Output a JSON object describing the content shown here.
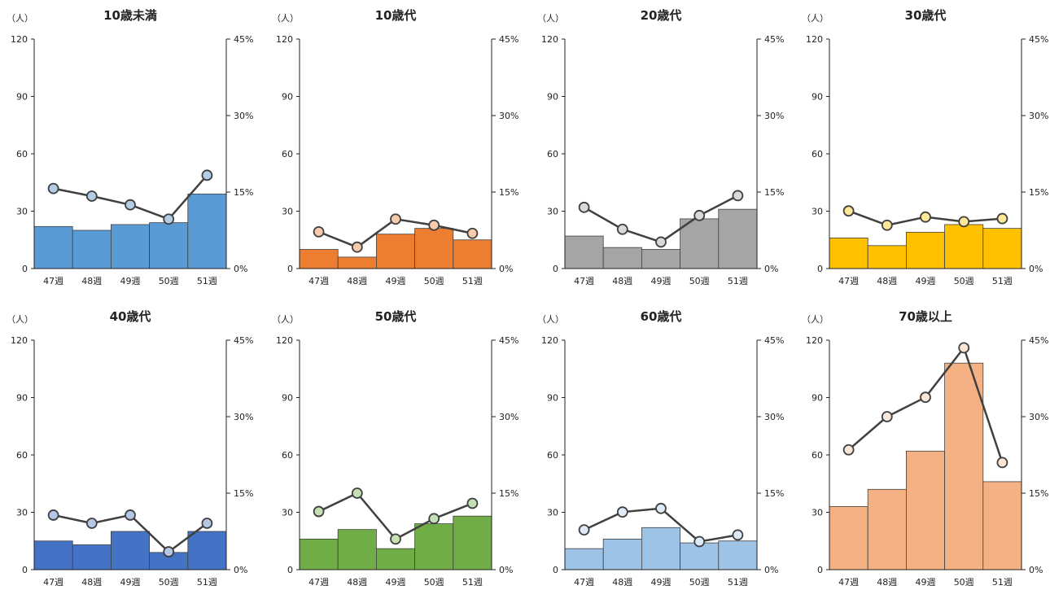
{
  "chart_data": [
    {
      "type": "bar+line",
      "title": "10歳未満",
      "categories": [
        "47週",
        "48週",
        "49週",
        "50週",
        "51週"
      ],
      "ylim": [
        0,
        120
      ],
      "yticks": [
        0,
        30,
        60,
        90,
        120
      ],
      "y2lim": [
        0,
        0.45
      ],
      "y2ticks": [
        "0%",
        "15%",
        "30%",
        "45%"
      ],
      "yunit": "（人）",
      "series": [
        {
          "type": "bar",
          "values": [
            22,
            20,
            23,
            24,
            39
          ]
        },
        {
          "type": "line",
          "values": [
            0.157,
            0.142,
            0.125,
            0.097,
            0.183
          ]
        }
      ],
      "bar_color": "#5b9bd5",
      "marker_color": "#b4cde6"
    },
    {
      "type": "bar+line",
      "title": "10歳代",
      "categories": [
        "47週",
        "48週",
        "49週",
        "50週",
        "51週"
      ],
      "ylim": [
        0,
        120
      ],
      "yticks": [
        0,
        30,
        60,
        90,
        120
      ],
      "y2lim": [
        0,
        0.45
      ],
      "y2ticks": [
        "0%",
        "15%",
        "30%",
        "45%"
      ],
      "yunit": "（人）",
      "series": [
        {
          "type": "bar",
          "values": [
            10,
            6,
            18,
            21,
            15
          ]
        },
        {
          "type": "line",
          "values": [
            0.072,
            0.042,
            0.097,
            0.085,
            0.069
          ]
        }
      ],
      "bar_color": "#ed7d31",
      "marker_color": "#f8cbad"
    },
    {
      "type": "bar+line",
      "title": "20歳代",
      "categories": [
        "47週",
        "48週",
        "49週",
        "50週",
        "51週"
      ],
      "ylim": [
        0,
        120
      ],
      "yticks": [
        0,
        30,
        60,
        90,
        120
      ],
      "y2lim": [
        0,
        0.45
      ],
      "y2ticks": [
        "0%",
        "15%",
        "30%",
        "45%"
      ],
      "yunit": "（人）",
      "series": [
        {
          "type": "bar",
          "values": [
            17,
            11,
            10,
            26,
            31
          ]
        },
        {
          "type": "line",
          "values": [
            0.12,
            0.077,
            0.052,
            0.104,
            0.143
          ]
        }
      ],
      "bar_color": "#a5a5a5",
      "marker_color": "#d9d9d9"
    },
    {
      "type": "bar+line",
      "title": "30歳代",
      "categories": [
        "47週",
        "48週",
        "49週",
        "50週",
        "51週"
      ],
      "ylim": [
        0,
        120
      ],
      "yticks": [
        0,
        30,
        60,
        90,
        120
      ],
      "y2lim": [
        0,
        0.45
      ],
      "y2ticks": [
        "0%",
        "15%",
        "30%",
        "45%"
      ],
      "yunit": "（人）",
      "series": [
        {
          "type": "bar",
          "values": [
            16,
            12,
            19,
            23,
            21
          ]
        },
        {
          "type": "line",
          "values": [
            0.113,
            0.085,
            0.101,
            0.092,
            0.098
          ]
        }
      ],
      "bar_color": "#ffc000",
      "marker_color": "#ffe699"
    },
    {
      "type": "bar+line",
      "title": "40歳代",
      "categories": [
        "47週",
        "48週",
        "49週",
        "50週",
        "51週"
      ],
      "ylim": [
        0,
        120
      ],
      "yticks": [
        0,
        30,
        60,
        90,
        120
      ],
      "y2lim": [
        0,
        0.45
      ],
      "y2ticks": [
        "0%",
        "15%",
        "30%",
        "45%"
      ],
      "yunit": "（人）",
      "series": [
        {
          "type": "bar",
          "values": [
            15,
            13,
            20,
            9,
            20
          ]
        },
        {
          "type": "line",
          "values": [
            0.107,
            0.091,
            0.107,
            0.035,
            0.091
          ]
        }
      ],
      "bar_color": "#4472c4",
      "marker_color": "#b4c7e7"
    },
    {
      "type": "bar+line",
      "title": "50歳代",
      "categories": [
        "47週",
        "48週",
        "49週",
        "50週",
        "51週"
      ],
      "ylim": [
        0,
        120
      ],
      "yticks": [
        0,
        30,
        60,
        90,
        120
      ],
      "y2lim": [
        0,
        0.45
      ],
      "y2ticks": [
        "0%",
        "15%",
        "30%",
        "45%"
      ],
      "yunit": "（人）",
      "series": [
        {
          "type": "bar",
          "values": [
            16,
            21,
            11,
            24,
            28
          ]
        },
        {
          "type": "line",
          "values": [
            0.114,
            0.15,
            0.06,
            0.1,
            0.13
          ]
        }
      ],
      "bar_color": "#70ad47",
      "marker_color": "#c5e0b4"
    },
    {
      "type": "bar+line",
      "title": "60歳代",
      "categories": [
        "47週",
        "48週",
        "49週",
        "50週",
        "51週"
      ],
      "ylim": [
        0,
        120
      ],
      "yticks": [
        0,
        30,
        60,
        90,
        120
      ],
      "y2lim": [
        0,
        0.45
      ],
      "y2ticks": [
        "0%",
        "15%",
        "30%",
        "45%"
      ],
      "yunit": "（人）",
      "series": [
        {
          "type": "bar",
          "values": [
            11,
            16,
            22,
            14,
            15
          ]
        },
        {
          "type": "line",
          "values": [
            0.078,
            0.113,
            0.12,
            0.055,
            0.068
          ]
        }
      ],
      "bar_color": "#9dc3e6",
      "marker_color": "#deebf7"
    },
    {
      "type": "bar+line",
      "title": "70歳以上",
      "categories": [
        "47週",
        "48週",
        "49週",
        "50週",
        "51週"
      ],
      "ylim": [
        0,
        120
      ],
      "yticks": [
        0,
        30,
        60,
        90,
        120
      ],
      "y2lim": [
        0,
        0.45
      ],
      "y2ticks": [
        "0%",
        "15%",
        "30%",
        "45%"
      ],
      "yunit": "（人）",
      "series": [
        {
          "type": "bar",
          "values": [
            33,
            42,
            62,
            108,
            46
          ]
        },
        {
          "type": "line",
          "values": [
            0.235,
            0.3,
            0.338,
            0.435,
            0.21
          ]
        }
      ],
      "bar_color": "#f4b183",
      "marker_color": "#fbe5d6"
    }
  ]
}
